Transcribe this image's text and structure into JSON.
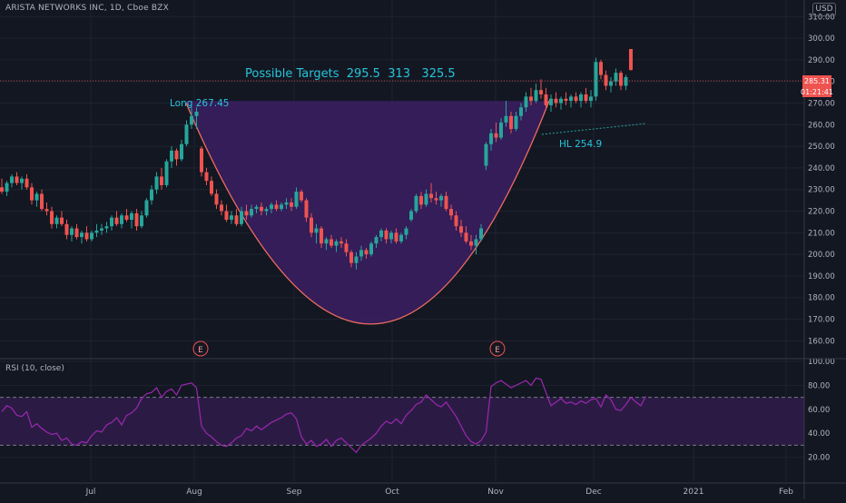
{
  "header": {
    "symbol_line": "ARISTA NETWORKS INC, 1D, Cboe BZX",
    "currency": "USD"
  },
  "rsi_panel": {
    "title": "RSI (10, close)",
    "upper_band": 70,
    "lower_band": 30
  },
  "annotations": {
    "targets": "Possible Targets  295.5  313   325.5",
    "long_label": "Long 267.45",
    "hl_label": "HL 254.9",
    "earnings_marker": "E"
  },
  "price_tags": {
    "last": "285.31",
    "countdown": "01:21:41"
  },
  "colors": {
    "background": "#131722",
    "grid": "#1f2330",
    "up": "#26a69a",
    "down": "#ef5350",
    "cup_fill": "#3b1f63",
    "cup_stroke": "#ef6c60",
    "annotation_text": "#26c6da",
    "rsi_line": "#9c27b0",
    "rsi_band": "#2b1b44",
    "axis_text": "#b2b5be"
  },
  "chart_data": [
    {
      "type": "candlestick",
      "title": "ARISTA NETWORKS INC, 1D, Cboe BZX",
      "y_axis_ticks": [
        "160.00",
        "170.00",
        "180.00",
        "190.00",
        "200.00",
        "210.00",
        "220.00",
        "230.00",
        "240.00",
        "250.00",
        "260.00",
        "270.00",
        "280.00",
        "290.00",
        "300.00",
        "310.00"
      ],
      "ylim": [
        153,
        316
      ],
      "x_axis_labels": [
        "Jul",
        "Aug",
        "Sep",
        "Oct",
        "Nov",
        "Dec",
        "2021",
        "Feb"
      ],
      "candles": [
        {
          "o": 231,
          "h": 235,
          "l": 228,
          "c": 229
        },
        {
          "o": 229,
          "h": 234,
          "l": 227,
          "c": 233
        },
        {
          "o": 233,
          "h": 237,
          "l": 231,
          "c": 236
        },
        {
          "o": 236,
          "h": 238,
          "l": 232,
          "c": 233
        },
        {
          "o": 233,
          "h": 236,
          "l": 230,
          "c": 235
        },
        {
          "o": 235,
          "h": 237,
          "l": 230,
          "c": 231
        },
        {
          "o": 231,
          "h": 233,
          "l": 223,
          "c": 225
        },
        {
          "o": 225,
          "h": 229,
          "l": 222,
          "c": 228
        },
        {
          "o": 228,
          "h": 230,
          "l": 220,
          "c": 221
        },
        {
          "o": 221,
          "h": 224,
          "l": 218,
          "c": 220
        },
        {
          "o": 220,
          "h": 222,
          "l": 212,
          "c": 214
        },
        {
          "o": 214,
          "h": 218,
          "l": 212,
          "c": 217
        },
        {
          "o": 217,
          "h": 220,
          "l": 213,
          "c": 214
        },
        {
          "o": 214,
          "h": 216,
          "l": 207,
          "c": 209
        },
        {
          "o": 209,
          "h": 213,
          "l": 206,
          "c": 212
        },
        {
          "o": 212,
          "h": 214,
          "l": 207,
          "c": 208
        },
        {
          "o": 208,
          "h": 211,
          "l": 205,
          "c": 210
        },
        {
          "o": 210,
          "h": 213,
          "l": 206,
          "c": 207
        },
        {
          "o": 207,
          "h": 211,
          "l": 206,
          "c": 210
        },
        {
          "o": 210,
          "h": 214,
          "l": 208,
          "c": 211
        },
        {
          "o": 211,
          "h": 214,
          "l": 209,
          "c": 212
        },
        {
          "o": 212,
          "h": 215,
          "l": 210,
          "c": 213
        },
        {
          "o": 213,
          "h": 218,
          "l": 211,
          "c": 217
        },
        {
          "o": 217,
          "h": 220,
          "l": 213,
          "c": 214
        },
        {
          "o": 214,
          "h": 219,
          "l": 212,
          "c": 218
        },
        {
          "o": 218,
          "h": 221,
          "l": 215,
          "c": 216
        },
        {
          "o": 216,
          "h": 220,
          "l": 212,
          "c": 219
        },
        {
          "o": 219,
          "h": 221,
          "l": 211,
          "c": 213
        },
        {
          "o": 213,
          "h": 220,
          "l": 212,
          "c": 218
        },
        {
          "o": 218,
          "h": 226,
          "l": 217,
          "c": 225
        },
        {
          "o": 225,
          "h": 232,
          "l": 223,
          "c": 230
        },
        {
          "o": 230,
          "h": 238,
          "l": 228,
          "c": 236
        },
        {
          "o": 236,
          "h": 240,
          "l": 230,
          "c": 232
        },
        {
          "o": 232,
          "h": 244,
          "l": 231,
          "c": 243
        },
        {
          "o": 243,
          "h": 250,
          "l": 240,
          "c": 248
        },
        {
          "o": 248,
          "h": 249,
          "l": 241,
          "c": 244
        },
        {
          "o": 244,
          "h": 253,
          "l": 243,
          "c": 251
        },
        {
          "o": 251,
          "h": 262,
          "l": 250,
          "c": 260
        },
        {
          "o": 260,
          "h": 268,
          "l": 258,
          "c": 264
        },
        {
          "o": 264,
          "h": 268,
          "l": 258,
          "c": 266
        },
        {
          "o": 249,
          "h": 250,
          "l": 236,
          "c": 238
        },
        {
          "o": 238,
          "h": 240,
          "l": 232,
          "c": 234
        },
        {
          "o": 234,
          "h": 236,
          "l": 227,
          "c": 228
        },
        {
          "o": 228,
          "h": 230,
          "l": 221,
          "c": 223
        },
        {
          "o": 223,
          "h": 225,
          "l": 218,
          "c": 220
        },
        {
          "o": 220,
          "h": 223,
          "l": 215,
          "c": 216
        },
        {
          "o": 216,
          "h": 220,
          "l": 214,
          "c": 218
        },
        {
          "o": 218,
          "h": 221,
          "l": 213,
          "c": 214
        },
        {
          "o": 214,
          "h": 222,
          "l": 213,
          "c": 220
        },
        {
          "o": 220,
          "h": 223,
          "l": 216,
          "c": 218
        },
        {
          "o": 218,
          "h": 223,
          "l": 217,
          "c": 221
        },
        {
          "o": 221,
          "h": 223,
          "l": 219,
          "c": 222
        },
        {
          "o": 222,
          "h": 224,
          "l": 218,
          "c": 220
        },
        {
          "o": 220,
          "h": 222,
          "l": 218,
          "c": 221
        },
        {
          "o": 221,
          "h": 224,
          "l": 219,
          "c": 223
        },
        {
          "o": 223,
          "h": 225,
          "l": 220,
          "c": 221
        },
        {
          "o": 221,
          "h": 224,
          "l": 220,
          "c": 223
        },
        {
          "o": 223,
          "h": 226,
          "l": 221,
          "c": 224
        },
        {
          "o": 224,
          "h": 226,
          "l": 220,
          "c": 222
        },
        {
          "o": 222,
          "h": 231,
          "l": 221,
          "c": 229
        },
        {
          "o": 229,
          "h": 230,
          "l": 224,
          "c": 225
        },
        {
          "o": 225,
          "h": 226,
          "l": 215,
          "c": 217
        },
        {
          "o": 217,
          "h": 219,
          "l": 208,
          "c": 210
        },
        {
          "o": 210,
          "h": 214,
          "l": 205,
          "c": 212
        },
        {
          "o": 212,
          "h": 213,
          "l": 203,
          "c": 205
        },
        {
          "o": 205,
          "h": 208,
          "l": 202,
          "c": 207
        },
        {
          "o": 207,
          "h": 209,
          "l": 203,
          "c": 204
        },
        {
          "o": 204,
          "h": 207,
          "l": 201,
          "c": 206
        },
        {
          "o": 206,
          "h": 208,
          "l": 203,
          "c": 205
        },
        {
          "o": 205,
          "h": 207,
          "l": 199,
          "c": 201
        },
        {
          "o": 201,
          "h": 202,
          "l": 194,
          "c": 196
        },
        {
          "o": 196,
          "h": 201,
          "l": 193,
          "c": 199
        },
        {
          "o": 199,
          "h": 204,
          "l": 197,
          "c": 202
        },
        {
          "o": 202,
          "h": 203,
          "l": 198,
          "c": 200
        },
        {
          "o": 200,
          "h": 206,
          "l": 199,
          "c": 205
        },
        {
          "o": 205,
          "h": 209,
          "l": 203,
          "c": 208
        },
        {
          "o": 208,
          "h": 212,
          "l": 206,
          "c": 211
        },
        {
          "o": 211,
          "h": 212,
          "l": 205,
          "c": 207
        },
        {
          "o": 207,
          "h": 211,
          "l": 205,
          "c": 210
        },
        {
          "o": 210,
          "h": 212,
          "l": 205,
          "c": 206
        },
        {
          "o": 206,
          "h": 210,
          "l": 205,
          "c": 209
        },
        {
          "o": 209,
          "h": 213,
          "l": 207,
          "c": 212
        },
        {
          "o": 216,
          "h": 221,
          "l": 215,
          "c": 220
        },
        {
          "o": 220,
          "h": 228,
          "l": 219,
          "c": 227
        },
        {
          "o": 227,
          "h": 229,
          "l": 221,
          "c": 223
        },
        {
          "o": 223,
          "h": 230,
          "l": 222,
          "c": 228
        },
        {
          "o": 228,
          "h": 233,
          "l": 224,
          "c": 226
        },
        {
          "o": 226,
          "h": 229,
          "l": 223,
          "c": 225
        },
        {
          "o": 225,
          "h": 228,
          "l": 222,
          "c": 227
        },
        {
          "o": 227,
          "h": 229,
          "l": 220,
          "c": 221
        },
        {
          "o": 221,
          "h": 223,
          "l": 216,
          "c": 218
        },
        {
          "o": 218,
          "h": 220,
          "l": 211,
          "c": 213
        },
        {
          "o": 213,
          "h": 216,
          "l": 208,
          "c": 210
        },
        {
          "o": 210,
          "h": 213,
          "l": 205,
          "c": 206
        },
        {
          "o": 206,
          "h": 209,
          "l": 202,
          "c": 204
        },
        {
          "o": 204,
          "h": 209,
          "l": 200,
          "c": 207
        },
        {
          "o": 207,
          "h": 214,
          "l": 206,
          "c": 212
        },
        {
          "o": 241,
          "h": 252,
          "l": 239,
          "c": 251
        },
        {
          "o": 251,
          "h": 258,
          "l": 248,
          "c": 256
        },
        {
          "o": 256,
          "h": 261,
          "l": 252,
          "c": 254
        },
        {
          "o": 254,
          "h": 263,
          "l": 253,
          "c": 261
        },
        {
          "o": 261,
          "h": 271,
          "l": 259,
          "c": 264
        },
        {
          "o": 264,
          "h": 266,
          "l": 256,
          "c": 258
        },
        {
          "o": 258,
          "h": 266,
          "l": 257,
          "c": 264
        },
        {
          "o": 264,
          "h": 270,
          "l": 262,
          "c": 268
        },
        {
          "o": 268,
          "h": 275,
          "l": 266,
          "c": 273
        },
        {
          "o": 273,
          "h": 277,
          "l": 269,
          "c": 271
        },
        {
          "o": 271,
          "h": 279,
          "l": 270,
          "c": 276
        },
        {
          "o": 276,
          "h": 281,
          "l": 272,
          "c": 274
        },
        {
          "o": 274,
          "h": 277,
          "l": 267,
          "c": 269
        },
        {
          "o": 269,
          "h": 274,
          "l": 266,
          "c": 272
        },
        {
          "o": 272,
          "h": 275,
          "l": 268,
          "c": 270
        },
        {
          "o": 270,
          "h": 273,
          "l": 267,
          "c": 272
        },
        {
          "o": 272,
          "h": 275,
          "l": 269,
          "c": 271
        },
        {
          "o": 271,
          "h": 274,
          "l": 268,
          "c": 273
        },
        {
          "o": 273,
          "h": 275,
          "l": 270,
          "c": 271
        },
        {
          "o": 271,
          "h": 275,
          "l": 268,
          "c": 274
        },
        {
          "o": 274,
          "h": 277,
          "l": 270,
          "c": 271
        },
        {
          "o": 271,
          "h": 276,
          "l": 268,
          "c": 273
        },
        {
          "o": 273,
          "h": 291,
          "l": 271,
          "c": 289
        },
        {
          "o": 289,
          "h": 290,
          "l": 281,
          "c": 283
        },
        {
          "o": 283,
          "h": 285,
          "l": 276,
          "c": 278
        },
        {
          "o": 278,
          "h": 282,
          "l": 275,
          "c": 280
        },
        {
          "o": 280,
          "h": 286,
          "l": 278,
          "c": 284
        },
        {
          "o": 284,
          "h": 285,
          "l": 276,
          "c": 278
        },
        {
          "o": 278,
          "h": 283,
          "l": 276,
          "c": 282
        },
        {
          "o": 295,
          "h": 295,
          "l": 285,
          "c": 285.31
        }
      ]
    },
    {
      "type": "line",
      "title": "RSI (10, close)",
      "y_axis_ticks": [
        "20.00",
        "40.00",
        "60.00",
        "80.00",
        "100.00"
      ],
      "ylim": [
        0,
        100
      ],
      "bands": [
        70,
        30
      ],
      "values": [
        58,
        63,
        61,
        55,
        54,
        58,
        45,
        48,
        44,
        41,
        39,
        40,
        34,
        36,
        31,
        30,
        33,
        32,
        38,
        42,
        41,
        47,
        49,
        53,
        47,
        55,
        57,
        61,
        69,
        73,
        74,
        78,
        70,
        75,
        77,
        72,
        80,
        81,
        82,
        78,
        46,
        40,
        37,
        33,
        30,
        29,
        32,
        36,
        38,
        44,
        42,
        46,
        43,
        46,
        49,
        51,
        53,
        56,
        57,
        52,
        37,
        31,
        34,
        29,
        31,
        35,
        29,
        34,
        36,
        32,
        28,
        24,
        30,
        33,
        36,
        40,
        46,
        50,
        48,
        52,
        48,
        55,
        59,
        64,
        66,
        72,
        68,
        64,
        62,
        66,
        60,
        54,
        46,
        38,
        33,
        31,
        34,
        41,
        79,
        82,
        84,
        81,
        78,
        80,
        82,
        84,
        80,
        86,
        85,
        74,
        63,
        66,
        69,
        65,
        66,
        64,
        67,
        65,
        68,
        69,
        62,
        72,
        68,
        60,
        59,
        64,
        70,
        66,
        63,
        71
      ]
    }
  ]
}
